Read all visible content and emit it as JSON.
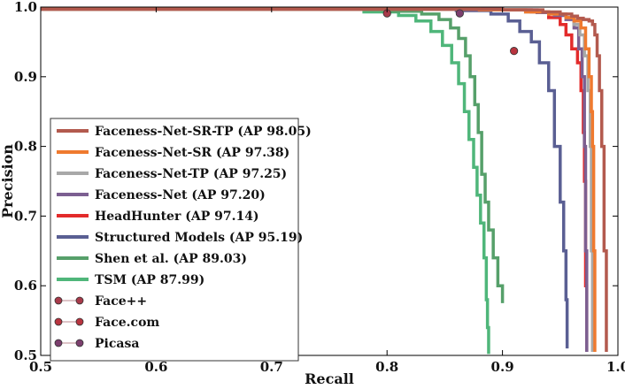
{
  "chart_data": {
    "type": "line",
    "title": "",
    "xlabel": "Recall",
    "ylabel": "Precision",
    "xlim": [
      0.5,
      1.0
    ],
    "ylim": [
      0.5,
      1.0
    ],
    "xticks": [
      "0.5",
      "0.6",
      "0.7",
      "0.8",
      "0.9",
      "1.0"
    ],
    "yticks": [
      "0.5",
      "0.6",
      "0.7",
      "0.8",
      "0.9",
      "1.0"
    ],
    "grid": false,
    "legend_position": "lower-left",
    "series": [
      {
        "name": "Faceness-Net-SR-TP (AP 98.05)",
        "color": "#b35a4e",
        "kind": "line",
        "x": [
          0.5,
          0.9,
          0.935,
          0.95,
          0.96,
          0.965,
          0.97,
          0.975,
          0.978,
          0.98,
          0.982,
          0.984,
          0.986,
          0.988,
          0.99
        ],
        "y": [
          0.997,
          0.996,
          0.993,
          0.99,
          0.987,
          0.984,
          0.982,
          0.98,
          0.975,
          0.96,
          0.93,
          0.88,
          0.8,
          0.65,
          0.505
        ]
      },
      {
        "name": "Faceness-Net-SR (AP 97.38)",
        "color": "#ef7a2f",
        "kind": "line",
        "x": [
          0.5,
          0.88,
          0.92,
          0.94,
          0.955,
          0.962,
          0.968,
          0.972,
          0.975,
          0.977,
          0.978,
          0.979,
          0.98
        ],
        "y": [
          0.997,
          0.996,
          0.993,
          0.99,
          0.985,
          0.98,
          0.97,
          0.94,
          0.9,
          0.85,
          0.8,
          0.65,
          0.505
        ]
      },
      {
        "name": "Faceness-Net-TP (AP 97.25)",
        "color": "#a8a8a8",
        "kind": "line",
        "x": [
          0.5,
          0.88,
          0.92,
          0.94,
          0.955,
          0.962,
          0.967,
          0.971,
          0.974,
          0.976,
          0.977,
          0.978
        ],
        "y": [
          0.997,
          0.996,
          0.993,
          0.99,
          0.985,
          0.975,
          0.96,
          0.93,
          0.88,
          0.8,
          0.65,
          0.505
        ]
      },
      {
        "name": "Faceness-Net (AP 97.20)",
        "color": "#7c5f91",
        "kind": "line",
        "x": [
          0.5,
          0.9,
          0.93,
          0.945,
          0.955,
          0.962,
          0.966,
          0.969,
          0.971,
          0.972,
          0.973
        ],
        "y": [
          0.997,
          0.996,
          0.992,
          0.988,
          0.982,
          0.97,
          0.94,
          0.9,
          0.8,
          0.65,
          0.505
        ]
      },
      {
        "name": "HeadHunter (AP 97.14)",
        "color": "#e32b2b",
        "kind": "line",
        "x": [
          0.5,
          0.9,
          0.925,
          0.94,
          0.95,
          0.955,
          0.96,
          0.965,
          0.968,
          0.97,
          0.971,
          0.972,
          0.973
        ],
        "y": [
          0.997,
          0.996,
          0.993,
          0.985,
          0.975,
          0.96,
          0.94,
          0.92,
          0.88,
          0.82,
          0.75,
          0.6,
          0.505
        ]
      },
      {
        "name": "Structured Models (AP 95.19)",
        "color": "#5a5f93",
        "kind": "line",
        "x": [
          0.5,
          0.86,
          0.89,
          0.905,
          0.915,
          0.925,
          0.932,
          0.94,
          0.945,
          0.95,
          0.953,
          0.955,
          0.956
        ],
        "y": [
          0.997,
          0.995,
          0.99,
          0.98,
          0.965,
          0.95,
          0.92,
          0.88,
          0.8,
          0.72,
          0.65,
          0.58,
          0.51
        ]
      },
      {
        "name": "Shen et al. (AP 89.03)",
        "color": "#56a06a",
        "kind": "line",
        "x": [
          0.5,
          0.8,
          0.83,
          0.845,
          0.855,
          0.862,
          0.868,
          0.872,
          0.876,
          0.879,
          0.882,
          0.885,
          0.888,
          0.892,
          0.896,
          0.9
        ],
        "y": [
          0.997,
          0.994,
          0.99,
          0.982,
          0.97,
          0.955,
          0.93,
          0.9,
          0.86,
          0.82,
          0.76,
          0.72,
          0.68,
          0.64,
          0.6,
          0.575
        ]
      },
      {
        "name": "TSM (AP 87.99)",
        "color": "#4fb67a",
        "kind": "line",
        "x": [
          0.5,
          0.78,
          0.81,
          0.825,
          0.838,
          0.848,
          0.856,
          0.862,
          0.867,
          0.871,
          0.875,
          0.878,
          0.881,
          0.884,
          0.886,
          0.887,
          0.888
        ],
        "y": [
          0.997,
          0.993,
          0.988,
          0.98,
          0.965,
          0.945,
          0.92,
          0.89,
          0.85,
          0.81,
          0.77,
          0.73,
          0.69,
          0.64,
          0.58,
          0.54,
          0.502
        ]
      },
      {
        "name": "Face++",
        "color": "#a83a4a",
        "kind": "point",
        "x": [
          0.8
        ],
        "y": [
          0.991
        ]
      },
      {
        "name": "Face.com",
        "color": "#b8343f",
        "kind": "point",
        "x": [
          0.91
        ],
        "y": [
          0.937
        ]
      },
      {
        "name": "Picasa",
        "color": "#7c3f6e",
        "kind": "point",
        "x": [
          0.863
        ],
        "y": [
          0.991
        ]
      }
    ]
  }
}
